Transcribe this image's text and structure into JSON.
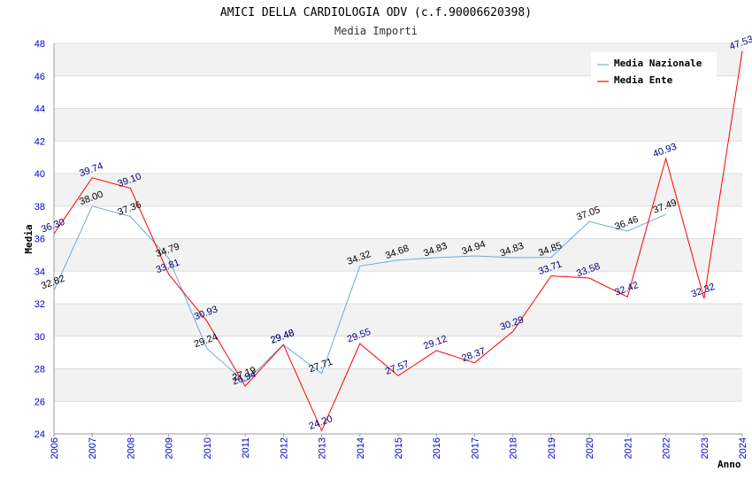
{
  "chart_data": {
    "type": "line",
    "title": "AMICI DELLA CARDIOLOGIA ODV (c.f.90006620398)",
    "subtitle": "Media Importi",
    "xlabel": "Anno",
    "ylabel": "Media",
    "ylim": [
      24,
      48
    ],
    "yticks": [
      24,
      26,
      28,
      30,
      32,
      34,
      36,
      38,
      40,
      42,
      44,
      46,
      48
    ],
    "grid": true,
    "legend_position": "top-right",
    "x": [
      "2006",
      "2007",
      "2008",
      "2009",
      "2010",
      "2011",
      "2012",
      "2013",
      "2014",
      "2015",
      "2016",
      "2017",
      "2018",
      "2019",
      "2020",
      "2021",
      "2022",
      "2023",
      "2024"
    ],
    "series": [
      {
        "name": "Media Nazionale",
        "color": "#6fa8dc",
        "label_color": "#000000",
        "values": [
          32.82,
          38.0,
          37.36,
          34.79,
          29.24,
          27.19,
          29.48,
          27.71,
          34.32,
          34.68,
          34.83,
          34.94,
          34.83,
          34.85,
          37.05,
          36.46,
          37.49,
          null,
          null
        ],
        "labels": [
          "32.82",
          "38.00",
          "37.36",
          "34.79",
          "29.24",
          "27.19",
          "29.48",
          "27.71",
          "34.32",
          "34.68",
          "34.83",
          "34.94",
          "34.83",
          "34.85",
          "37.05",
          "36.46",
          "37.49",
          "",
          ""
        ]
      },
      {
        "name": "Media Ente",
        "color": "#ff0000",
        "label_color": "#000080",
        "values": [
          36.3,
          39.74,
          39.1,
          33.81,
          30.93,
          26.94,
          29.48,
          24.2,
          29.55,
          27.57,
          29.12,
          28.37,
          30.29,
          33.71,
          33.58,
          32.42,
          40.93,
          32.32,
          47.53
        ],
        "labels": [
          "36.30",
          "39.74",
          "39.10",
          "33.81",
          "30.93",
          "26.94",
          "29.48",
          "24.20",
          "29.55",
          "27.57",
          "29.12",
          "28.37",
          "30.29",
          "33.71",
          "33.58",
          "32.42",
          "40.93",
          "32.32",
          "47.53"
        ]
      }
    ]
  }
}
